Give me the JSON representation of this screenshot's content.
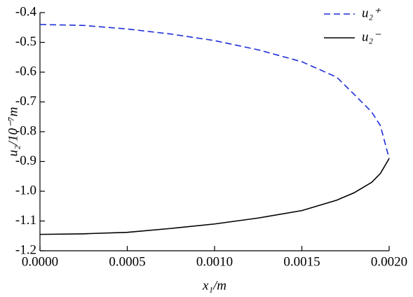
{
  "chart_data": {
    "type": "line",
    "x_label": "x₁/m",
    "y_label": "u₂/10⁻⁷m",
    "x": [
      0,
      0.00025,
      0.0005,
      0.00075,
      0.001,
      0.00125,
      0.0015,
      0.0017,
      0.0018,
      0.0019,
      0.00195,
      0.002
    ],
    "series": [
      {
        "name": "u₂⁺",
        "color": "#1f2fd6",
        "dash": "dashed",
        "values": [
          -0.44,
          -0.443,
          -0.455,
          -0.472,
          -0.494,
          -0.525,
          -0.565,
          -0.617,
          -0.675,
          -0.734,
          -0.78,
          -0.89
        ]
      },
      {
        "name": "u₂⁻",
        "color": "#000000",
        "dash": "solid",
        "values": [
          -1.145,
          -1.143,
          -1.138,
          -1.125,
          -1.11,
          -1.09,
          -1.065,
          -1.03,
          -1.005,
          -0.97,
          -0.94,
          -0.89
        ]
      }
    ],
    "xlim": [
      0,
      0.002
    ],
    "ylim": [
      -1.2,
      -0.4
    ],
    "xticks": [
      {
        "value": 0,
        "label": "0.0000"
      },
      {
        "value": 0.0005,
        "label": "0.0005"
      },
      {
        "value": 0.001,
        "label": "0.0010"
      },
      {
        "value": 0.0015,
        "label": "0.0015"
      },
      {
        "value": 0.002,
        "label": "0.0020"
      }
    ],
    "yticks": [
      -0.4,
      -0.5,
      -0.6,
      -0.7,
      -0.8,
      -0.9,
      {
        "value": -1,
        "label": "-1.0"
      },
      -1.1,
      -1.2
    ],
    "legend": "upper-right"
  }
}
